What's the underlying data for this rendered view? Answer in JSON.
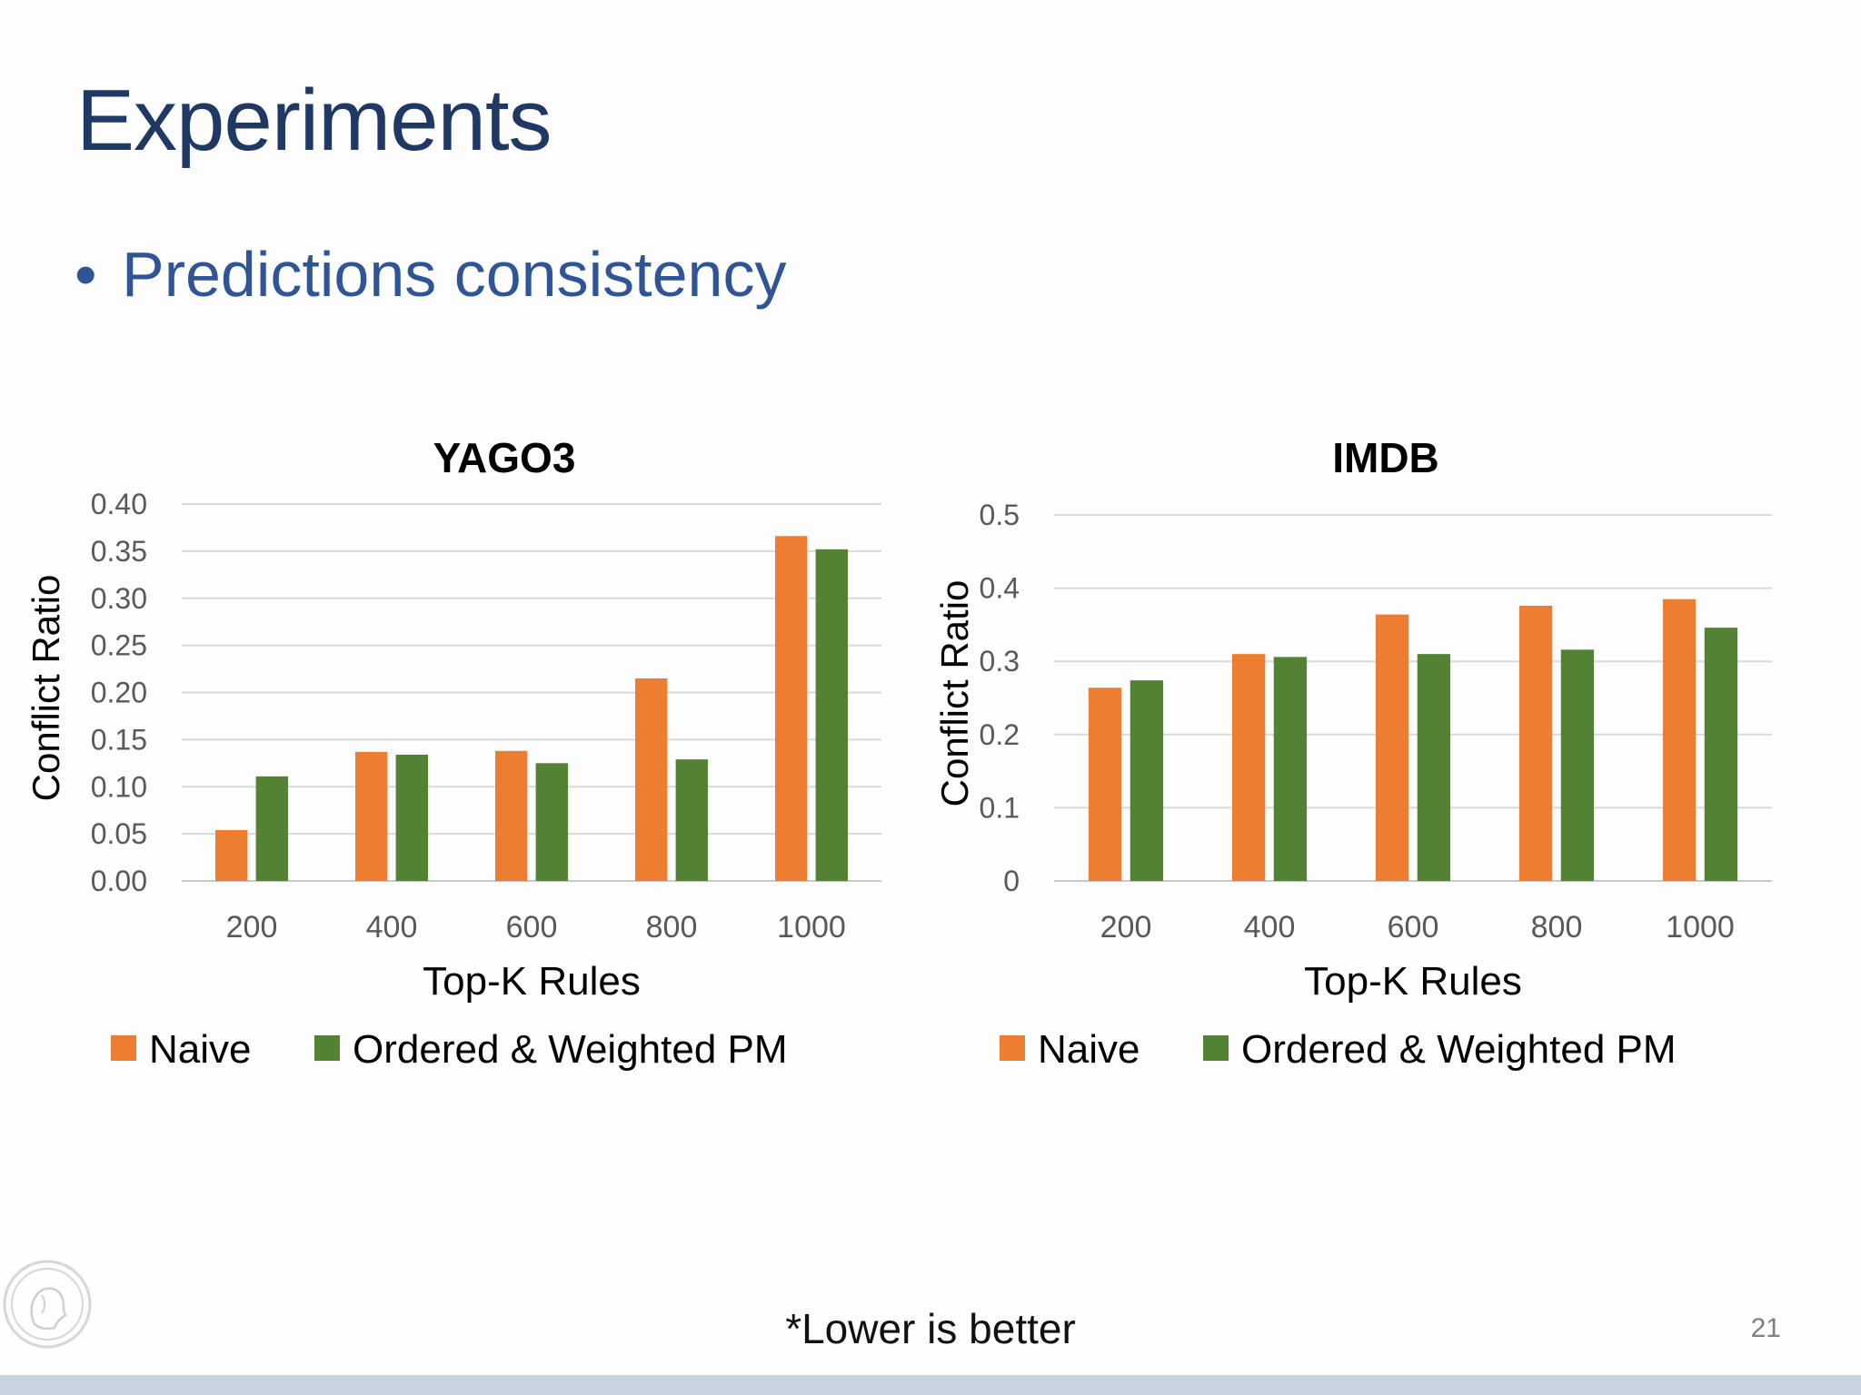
{
  "slide": {
    "title": "Experiments",
    "bullet": "Predictions consistency",
    "bullet_marker": "•",
    "footnote": "*Lower is better",
    "page_number": "21"
  },
  "colors": {
    "title": "#1f3864",
    "bullet": "#2f5597",
    "naive": "#ed7d31",
    "ordered_weighted": "#548235",
    "grid": "#d9d9d9",
    "bottom_bar": "#c9d3df"
  },
  "icons": {
    "logo": "minerva-seal-icon"
  },
  "chart_data": [
    {
      "type": "bar",
      "title": "YAGO3",
      "xlabel": "Top-K Rules",
      "ylabel": "Conflict Ratio",
      "categories": [
        "200",
        "400",
        "600",
        "800",
        "1000"
      ],
      "ylim": [
        0,
        0.4
      ],
      "yticks": [
        "0.00",
        "0.05",
        "0.10",
        "0.15",
        "0.20",
        "0.25",
        "0.30",
        "0.35",
        "0.40"
      ],
      "grid": true,
      "legend": "bottom",
      "series": [
        {
          "name": "Naive",
          "color": "#ed7d31",
          "values": [
            0.054,
            0.137,
            0.138,
            0.215,
            0.366
          ]
        },
        {
          "name": "Ordered & Weighted PM",
          "color": "#548235",
          "values": [
            0.111,
            0.134,
            0.125,
            0.129,
            0.352
          ]
        }
      ]
    },
    {
      "type": "bar",
      "title": "IMDB",
      "xlabel": "Top-K Rules",
      "ylabel": "Conflict Ratio",
      "categories": [
        "200",
        "400",
        "600",
        "800",
        "1000"
      ],
      "ylim": [
        0,
        0.5
      ],
      "yticks": [
        "0",
        "0.1",
        "0.2",
        "0.3",
        "0.4",
        "0.5"
      ],
      "grid": true,
      "legend": "bottom",
      "series": [
        {
          "name": "Naive",
          "color": "#ed7d31",
          "values": [
            0.264,
            0.31,
            0.364,
            0.376,
            0.385
          ]
        },
        {
          "name": "Ordered & Weighted PM",
          "color": "#548235",
          "values": [
            0.274,
            0.306,
            0.31,
            0.316,
            0.346
          ]
        }
      ]
    }
  ]
}
